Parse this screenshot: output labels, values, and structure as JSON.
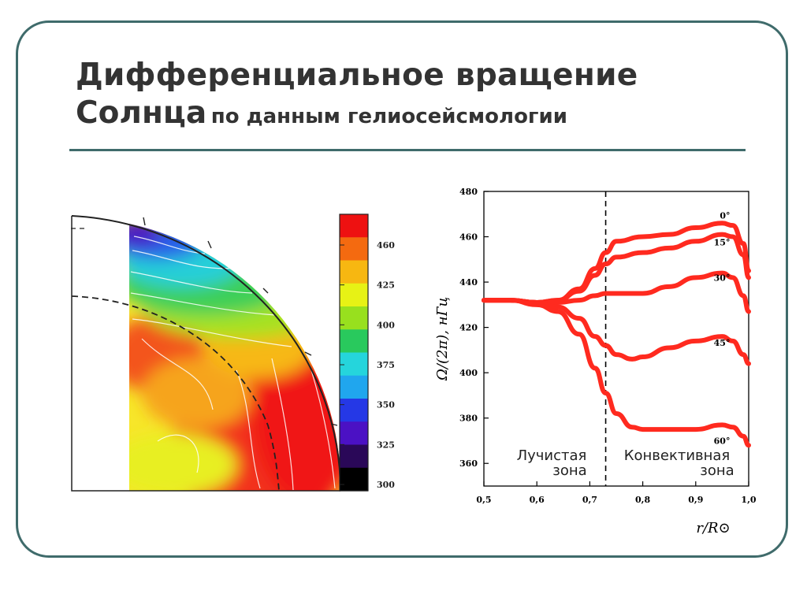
{
  "title": {
    "line1": "Дифференциальное вращение",
    "line2": "Солнца",
    "subtitle": "по данным гелиосейсмологии"
  },
  "colorbar": {
    "tick_labels": [
      "460",
      "425",
      "400",
      "375",
      "350",
      "325",
      "300"
    ],
    "colors": [
      "#ee1111",
      "#f46a10",
      "#f7b711",
      "#e7f215",
      "#98e01e",
      "#29c95d",
      "#25d5dc",
      "#20a6ee",
      "#2538e6",
      "#4b11c4",
      "#2a0858",
      "#000000"
    ]
  },
  "chart_data": {
    "type": "line",
    "xlabel": "r/R⊙",
    "ylabel": "Ω/(2π), нГц",
    "xlim": [
      0.5,
      1.0
    ],
    "ylim": [
      350,
      480
    ],
    "x_ticks": [
      "0,5",
      "0,6",
      "0,7",
      "0,8",
      "0,9",
      "1,0"
    ],
    "y_ticks": [
      "480",
      "460",
      "440",
      "420",
      "400",
      "380",
      "360"
    ],
    "y_tick_values": [
      480,
      460,
      440,
      420,
      400,
      380,
      360
    ],
    "x_tick_values": [
      0.5,
      0.6,
      0.7,
      0.8,
      0.9,
      1.0
    ],
    "tachocline_x": 0.73,
    "zone_labels": {
      "radiative_line1": "Лучистая",
      "radiative_line2": "зона",
      "convective_line1": "Конвективная",
      "convective_line2": "зона"
    },
    "series": [
      {
        "name": "0°",
        "x": [
          0.5,
          0.55,
          0.6,
          0.64,
          0.68,
          0.71,
          0.73,
          0.75,
          0.8,
          0.85,
          0.9,
          0.95,
          0.97,
          0.99,
          1.0
        ],
        "y": [
          432,
          432,
          431,
          432,
          437,
          446,
          453,
          458,
          460,
          461,
          464,
          466,
          465,
          457,
          445
        ]
      },
      {
        "name": "15°",
        "x": [
          0.5,
          0.55,
          0.6,
          0.64,
          0.68,
          0.71,
          0.73,
          0.75,
          0.8,
          0.85,
          0.9,
          0.95,
          0.97,
          0.99,
          1.0
        ],
        "y": [
          432,
          432,
          431,
          432,
          436,
          443,
          448,
          451,
          453,
          455,
          458,
          461,
          460,
          452,
          442
        ]
      },
      {
        "name": "30°",
        "x": [
          0.5,
          0.55,
          0.6,
          0.64,
          0.68,
          0.71,
          0.73,
          0.75,
          0.8,
          0.85,
          0.9,
          0.95,
          0.97,
          0.99,
          1.0
        ],
        "y": [
          432,
          432,
          431,
          431,
          432,
          434,
          435,
          435,
          435,
          438,
          442,
          444,
          442,
          434,
          427
        ]
      },
      {
        "name": "45°",
        "x": [
          0.5,
          0.55,
          0.6,
          0.64,
          0.68,
          0.71,
          0.73,
          0.75,
          0.78,
          0.8,
          0.85,
          0.9,
          0.95,
          0.97,
          0.99,
          1.0
        ],
        "y": [
          432,
          432,
          431,
          429,
          424,
          416,
          412,
          408,
          406,
          407,
          411,
          414,
          416,
          414,
          408,
          404
        ]
      },
      {
        "name": "60°",
        "x": [
          0.5,
          0.55,
          0.6,
          0.64,
          0.68,
          0.71,
          0.73,
          0.75,
          0.78,
          0.8,
          0.85,
          0.9,
          0.95,
          0.97,
          0.99,
          1.0
        ],
        "y": [
          432,
          432,
          430,
          427,
          417,
          402,
          391,
          382,
          376,
          375,
          375,
          375,
          377,
          376,
          372,
          368
        ]
      }
    ]
  }
}
